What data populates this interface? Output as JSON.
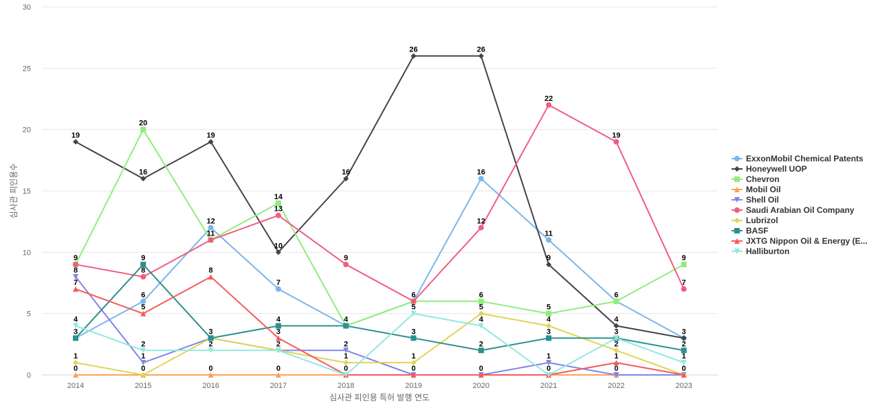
{
  "chart_data": {
    "type": "line",
    "xlabel": "심사관 피인용 특허 발행 연도",
    "ylabel": "심사관 피인용수",
    "ylim": [
      0,
      30
    ],
    "yticks": [
      0,
      5,
      10,
      15,
      20,
      25,
      30
    ],
    "categories": [
      "2014",
      "2015",
      "2016",
      "2017",
      "2018",
      "2019",
      "2020",
      "2021",
      "2022",
      "2023"
    ],
    "grid": true,
    "legend_position": "right",
    "series": [
      {
        "name": "ExxonMobil Chemical Patents",
        "color": "#7cb5ec",
        "marker": "circle",
        "values": [
          3,
          6,
          12,
          7,
          4,
          6,
          16,
          11,
          6,
          3
        ]
      },
      {
        "name": "Honeywell UOP",
        "color": "#434348",
        "marker": "diamond",
        "values": [
          19,
          16,
          19,
          10,
          16,
          26,
          26,
          9,
          4,
          3
        ]
      },
      {
        "name": "Chevron",
        "color": "#90ed7d",
        "marker": "square",
        "values": [
          9,
          20,
          11,
          14,
          4,
          6,
          6,
          5,
          6,
          9
        ]
      },
      {
        "name": "Mobil Oil",
        "color": "#f7a35c",
        "marker": "triangle",
        "values": [
          0,
          0,
          0,
          0,
          0,
          0,
          0,
          0,
          0,
          0
        ]
      },
      {
        "name": "Shell Oil",
        "color": "#8085e9",
        "marker": "triangle-down",
        "values": [
          8,
          1,
          3,
          2,
          2,
          0,
          0,
          1,
          0,
          0
        ]
      },
      {
        "name": "Saudi Arabian Oil Company",
        "color": "#f15c80",
        "marker": "circle",
        "values": [
          9,
          8,
          11,
          13,
          9,
          6,
          12,
          22,
          19,
          7
        ]
      },
      {
        "name": "Lubrizol",
        "color": "#e4d354",
        "marker": "diamond",
        "values": [
          1,
          0,
          3,
          2,
          1,
          1,
          5,
          4,
          2,
          0
        ]
      },
      {
        "name": "BASF",
        "color": "#2b908f",
        "marker": "square",
        "values": [
          3,
          9,
          3,
          4,
          4,
          3,
          2,
          3,
          3,
          2
        ]
      },
      {
        "name": "JXTG Nippon Oil & Energy (E...",
        "color": "#f45b5b",
        "marker": "triangle",
        "values": [
          7,
          5,
          8,
          3,
          0,
          0,
          0,
          0,
          1,
          0
        ]
      },
      {
        "name": "Halliburton",
        "color": "#91e8e1",
        "marker": "triangle-down",
        "values": [
          4,
          2,
          2,
          2,
          0,
          5,
          4,
          0,
          3,
          1
        ]
      }
    ],
    "data_labels": [
      {
        "x": "2014",
        "y": 19,
        "text": "19"
      },
      {
        "x": "2014",
        "y": 9,
        "text": "9"
      },
      {
        "x": "2014",
        "y": 8,
        "text": "8"
      },
      {
        "x": "2014",
        "y": 7,
        "text": "7"
      },
      {
        "x": "2014",
        "y": 4,
        "text": "4"
      },
      {
        "x": "2014",
        "y": 3,
        "text": "3"
      },
      {
        "x": "2014",
        "y": 1,
        "text": "1"
      },
      {
        "x": "2014",
        "y": 0,
        "text": "0"
      },
      {
        "x": "2015",
        "y": 20,
        "text": "20"
      },
      {
        "x": "2015",
        "y": 16,
        "text": "16"
      },
      {
        "x": "2015",
        "y": 9,
        "text": "9"
      },
      {
        "x": "2015",
        "y": 8,
        "text": "8"
      },
      {
        "x": "2015",
        "y": 6,
        "text": "6"
      },
      {
        "x": "2015",
        "y": 5,
        "text": "5"
      },
      {
        "x": "2015",
        "y": 2,
        "text": "2"
      },
      {
        "x": "2015",
        "y": 1,
        "text": "1"
      },
      {
        "x": "2015",
        "y": 0,
        "text": "0"
      },
      {
        "x": "2016",
        "y": 19,
        "text": "19"
      },
      {
        "x": "2016",
        "y": 12,
        "text": "12"
      },
      {
        "x": "2016",
        "y": 11,
        "text": "11"
      },
      {
        "x": "2016",
        "y": 8,
        "text": "8"
      },
      {
        "x": "2016",
        "y": 3,
        "text": "3"
      },
      {
        "x": "2016",
        "y": 2,
        "text": "2"
      },
      {
        "x": "2016",
        "y": 0,
        "text": "0"
      },
      {
        "x": "2017",
        "y": 14,
        "text": "14"
      },
      {
        "x": "2017",
        "y": 13,
        "text": "13"
      },
      {
        "x": "2017",
        "y": 10,
        "text": "10"
      },
      {
        "x": "2017",
        "y": 7,
        "text": "7"
      },
      {
        "x": "2017",
        "y": 4,
        "text": "4"
      },
      {
        "x": "2017",
        "y": 3,
        "text": "3"
      },
      {
        "x": "2017",
        "y": 2,
        "text": "2"
      },
      {
        "x": "2017",
        "y": 0,
        "text": "0"
      },
      {
        "x": "2018",
        "y": 16,
        "text": "16"
      },
      {
        "x": "2018",
        "y": 9,
        "text": "9"
      },
      {
        "x": "2018",
        "y": 4,
        "text": "4"
      },
      {
        "x": "2018",
        "y": 2,
        "text": "2"
      },
      {
        "x": "2018",
        "y": 1,
        "text": "1"
      },
      {
        "x": "2018",
        "y": 0,
        "text": "0"
      },
      {
        "x": "2019",
        "y": 26,
        "text": "26"
      },
      {
        "x": "2019",
        "y": 6,
        "text": "6"
      },
      {
        "x": "2019",
        "y": 5,
        "text": "5"
      },
      {
        "x": "2019",
        "y": 3,
        "text": "3"
      },
      {
        "x": "2019",
        "y": 1,
        "text": "1"
      },
      {
        "x": "2019",
        "y": 0,
        "text": "0"
      },
      {
        "x": "2020",
        "y": 26,
        "text": "26"
      },
      {
        "x": "2020",
        "y": 16,
        "text": "16"
      },
      {
        "x": "2020",
        "y": 12,
        "text": "12"
      },
      {
        "x": "2020",
        "y": 6,
        "text": "6"
      },
      {
        "x": "2020",
        "y": 5,
        "text": "5"
      },
      {
        "x": "2020",
        "y": 4,
        "text": "4"
      },
      {
        "x": "2020",
        "y": 2,
        "text": "2"
      },
      {
        "x": "2020",
        "y": 0,
        "text": "0"
      },
      {
        "x": "2021",
        "y": 22,
        "text": "22"
      },
      {
        "x": "2021",
        "y": 11,
        "text": "11"
      },
      {
        "x": "2021",
        "y": 9,
        "text": "9"
      },
      {
        "x": "2021",
        "y": 5,
        "text": "5"
      },
      {
        "x": "2021",
        "y": 4,
        "text": "4"
      },
      {
        "x": "2021",
        "y": 3,
        "text": "3"
      },
      {
        "x": "2021",
        "y": 1,
        "text": "1"
      },
      {
        "x": "2021",
        "y": 0,
        "text": "0"
      },
      {
        "x": "2022",
        "y": 19,
        "text": "19"
      },
      {
        "x": "2022",
        "y": 6,
        "text": "6"
      },
      {
        "x": "2022",
        "y": 4,
        "text": "4"
      },
      {
        "x": "2022",
        "y": 3,
        "text": "3"
      },
      {
        "x": "2022",
        "y": 2,
        "text": "2"
      },
      {
        "x": "2022",
        "y": 1,
        "text": "1"
      },
      {
        "x": "2022",
        "y": 0,
        "text": "0"
      },
      {
        "x": "2023",
        "y": 9,
        "text": "9"
      },
      {
        "x": "2023",
        "y": 7,
        "text": "7"
      },
      {
        "x": "2023",
        "y": 3,
        "text": "3"
      },
      {
        "x": "2023",
        "y": 2,
        "text": "2"
      },
      {
        "x": "2023",
        "y": 1,
        "text": "1"
      },
      {
        "x": "2023",
        "y": 0,
        "text": "0"
      }
    ]
  }
}
